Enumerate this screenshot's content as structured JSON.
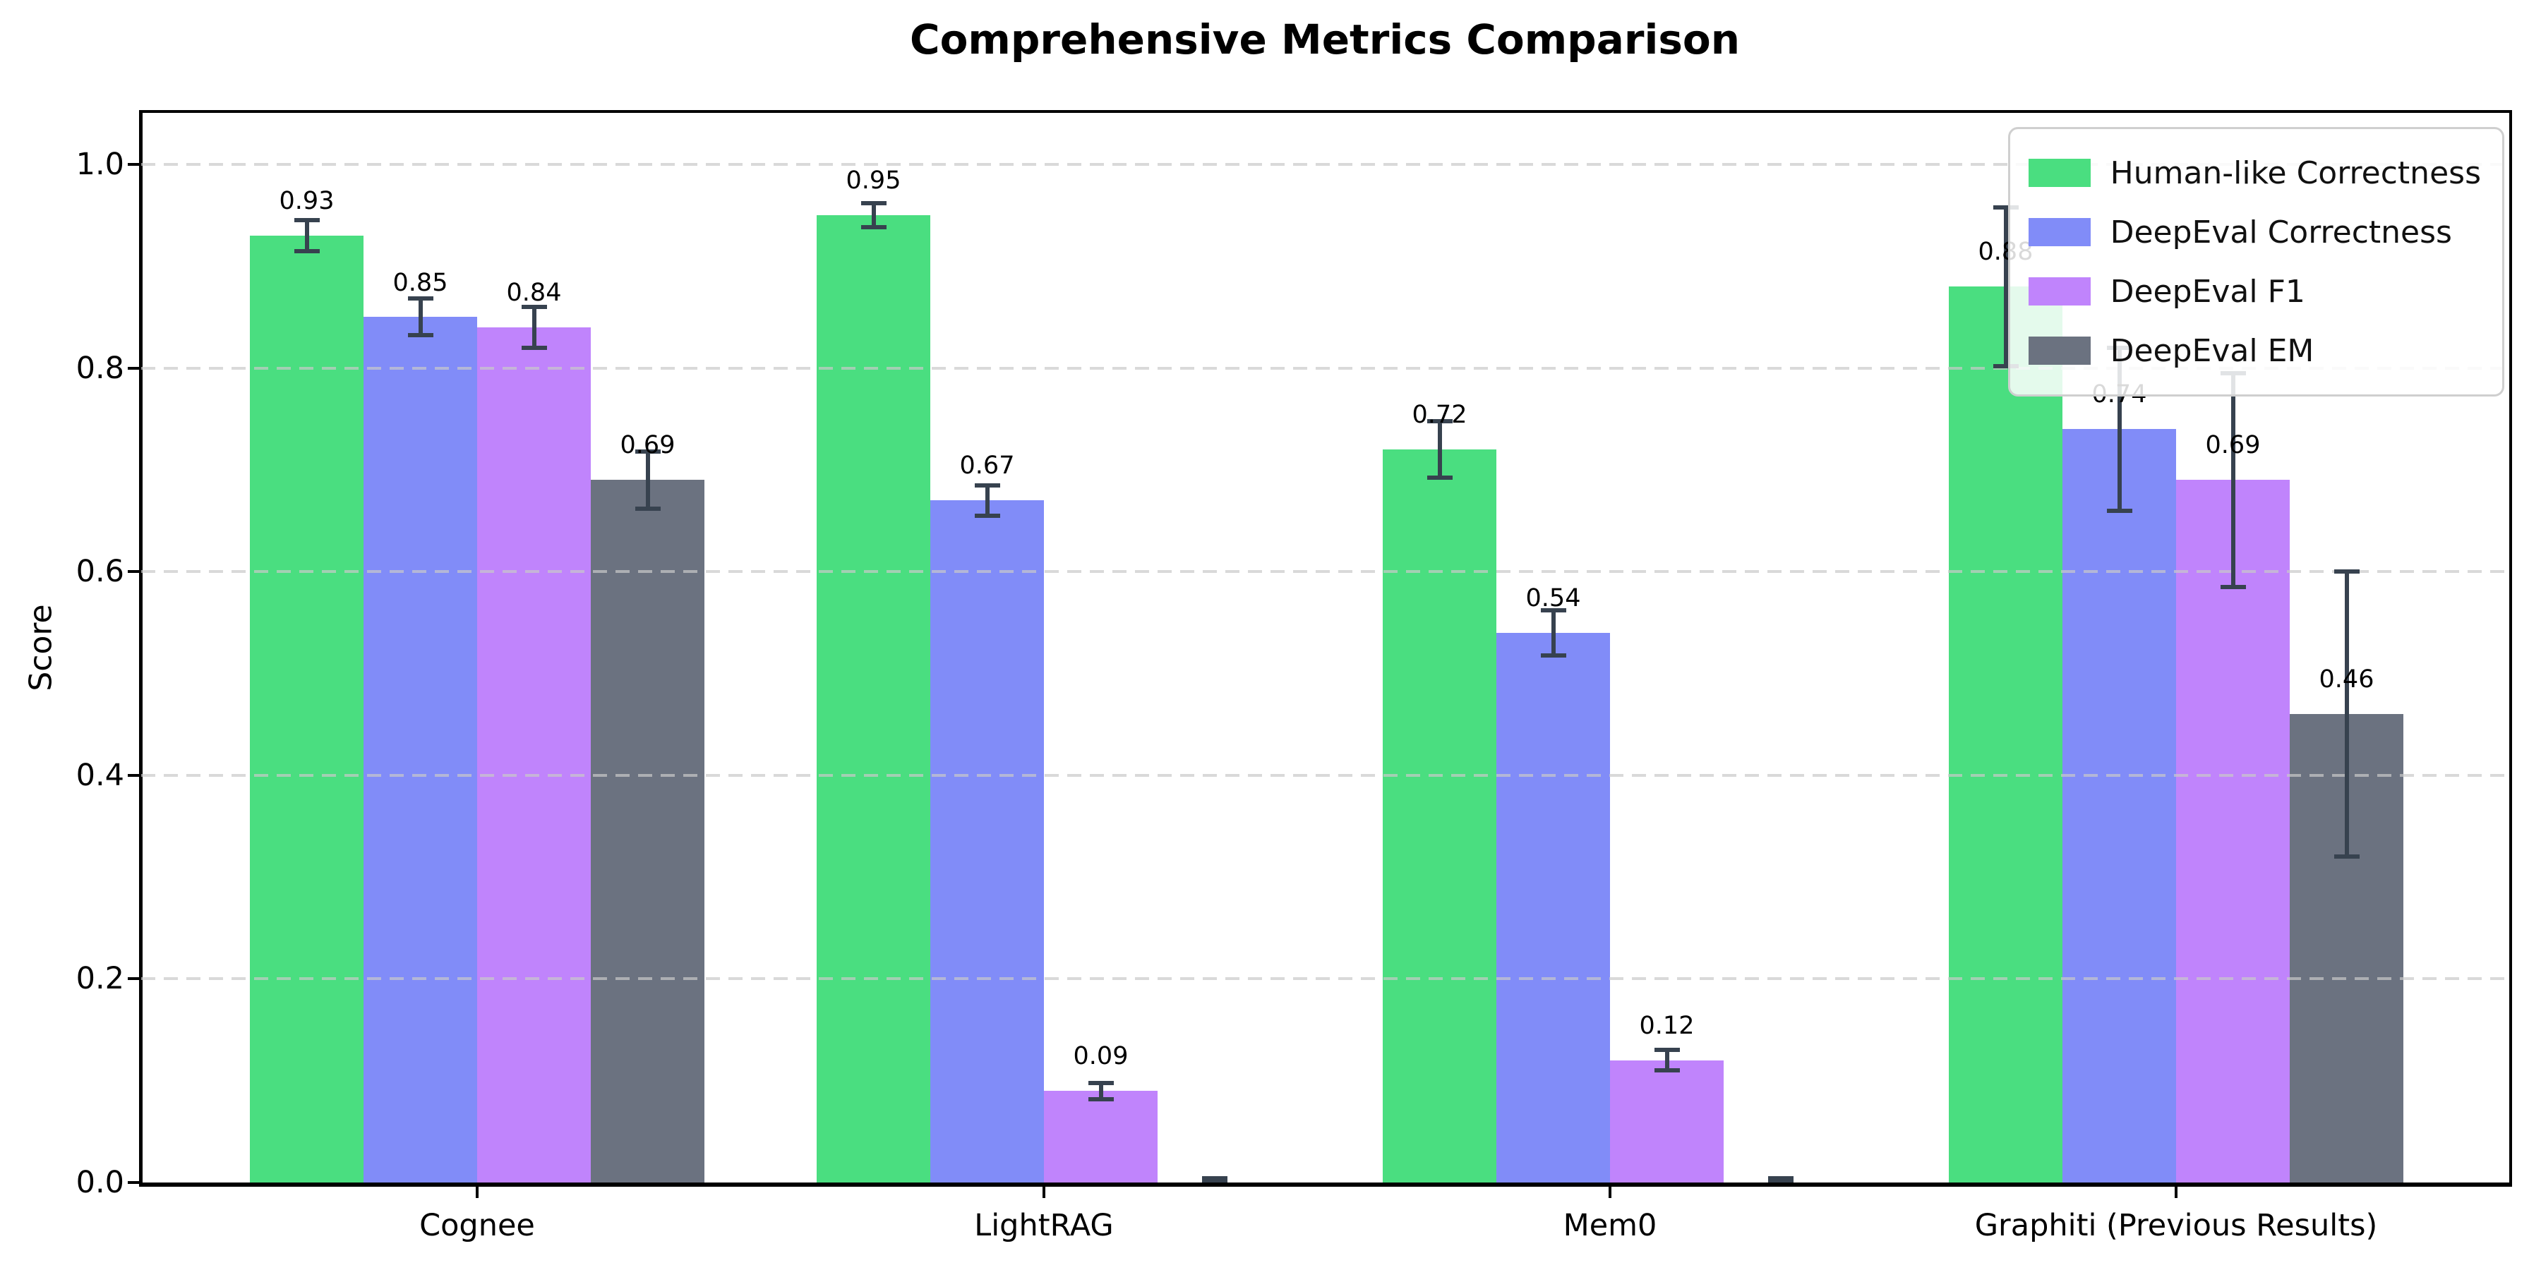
{
  "title": "Comprehensive Metrics Comparison",
  "axes": {
    "ylabel": "Score"
  },
  "chart_data": {
    "type": "bar",
    "title": "Comprehensive Metrics Comparison",
    "xlabel": "",
    "ylabel": "Score",
    "categories": [
      "Cognee",
      "LightRAG",
      "Mem0",
      "Graphiti (Previous Results)"
    ],
    "series": [
      {
        "name": "Human-like Correctness",
        "color": "#4ade80",
        "values": [
          0.93,
          0.95,
          0.72,
          0.88
        ],
        "errors": [
          0.015,
          0.012,
          0.028,
          0.078
        ],
        "bar_labels": [
          "0.93",
          "0.95",
          "0.72",
          "0.88"
        ]
      },
      {
        "name": "DeepEval Correctness",
        "color": "#818cf8",
        "values": [
          0.85,
          0.67,
          0.54,
          0.74
        ],
        "errors": [
          0.018,
          0.015,
          0.022,
          0.08
        ],
        "bar_labels": [
          "0.85",
          "0.67",
          "0.54",
          "0.74"
        ]
      },
      {
        "name": "DeepEval F1",
        "color": "#c084fc",
        "values": [
          0.84,
          0.09,
          0.12,
          0.69
        ],
        "errors": [
          0.02,
          0.008,
          0.01,
          0.105
        ],
        "bar_labels": [
          "0.84",
          "0.09",
          "0.12",
          "0.69"
        ]
      },
      {
        "name": "DeepEval EM",
        "color": "#6b7280",
        "values": [
          0.69,
          0.0,
          0.0,
          0.46
        ],
        "errors": [
          0.028,
          0.004,
          0.004,
          0.14
        ],
        "bar_labels": [
          "0.69",
          "",
          "",
          "0.46"
        ]
      }
    ],
    "ytick_labels": [
      "0.0",
      "0.2",
      "0.4",
      "0.6",
      "0.8",
      "1.0"
    ],
    "yticks": [
      0.0,
      0.2,
      0.4,
      0.6,
      0.8,
      1.0
    ],
    "ylim": [
      0,
      1.05
    ],
    "grid": {
      "axis": "y",
      "style": "dashed",
      "color": "#c9c9c9",
      "drawn_above_bars": true
    },
    "legend": {
      "position": "upper right"
    },
    "error_bar_color": "#37424f"
  }
}
